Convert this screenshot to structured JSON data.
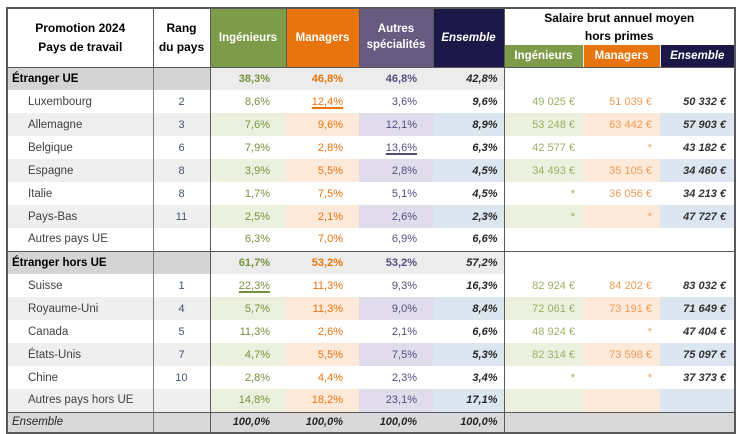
{
  "table": {
    "header": {
      "title_line1": "Promotion 2024",
      "title_line2": "Pays de travail",
      "rank_line1": "Rang",
      "rank_line2": "du pays",
      "col_ingenieurs": "Ingénieurs",
      "col_managers": "Managers",
      "col_autres_line1": "Autres",
      "col_autres_line2": "spécialités",
      "col_ensemble": "Ensemble",
      "salary_line1": "Salaire brut annuel moyen",
      "salary_line2": "hors primes",
      "sal_ingenieurs": "Ingénieurs",
      "sal_managers": "Managers",
      "sal_ensemble": "Ensemble"
    },
    "rows": [
      {
        "type": "section",
        "label": "Étranger UE",
        "rank": "",
        "pct": [
          "38,3%",
          "46,8%",
          "46,8%",
          "42,8%"
        ],
        "sal": [
          "",
          "",
          ""
        ]
      },
      {
        "type": "country",
        "tint": false,
        "label": "Luxembourg",
        "rank": "2",
        "pct": [
          "8,6%",
          "12,4%",
          "3,6%",
          "9,6%"
        ],
        "underline": [
          false,
          true,
          false,
          false
        ],
        "sal": [
          "49 025 €",
          "51 039 €",
          "50 332 €"
        ]
      },
      {
        "type": "country",
        "tint": true,
        "label": "Allemagne",
        "rank": "3",
        "pct": [
          "7,6%",
          "9,6%",
          "12,1%",
          "8,9%"
        ],
        "sal": [
          "53 248 €",
          "63 442 €",
          "57 903 €"
        ]
      },
      {
        "type": "country",
        "tint": false,
        "label": "Belgique",
        "rank": "6",
        "pct": [
          "7,9%",
          "2,8%",
          "13,6%",
          "6,3%"
        ],
        "underline": [
          false,
          false,
          true,
          false
        ],
        "sal": [
          "42 577 €",
          "*",
          "43 182 €"
        ]
      },
      {
        "type": "country",
        "tint": true,
        "label": "Espagne",
        "rank": "8",
        "pct": [
          "3,9%",
          "5,5%",
          "2,8%",
          "4,5%"
        ],
        "sal": [
          "34 493 €",
          "35 105 €",
          "34 460 €"
        ]
      },
      {
        "type": "country",
        "tint": false,
        "label": "Italie",
        "rank": "8",
        "pct": [
          "1,7%",
          "7,5%",
          "5,1%",
          "4,5%"
        ],
        "sal": [
          "*",
          "36 056 €",
          "34 213 €"
        ]
      },
      {
        "type": "country",
        "tint": true,
        "label": "Pays-Bas",
        "rank": "11",
        "pct": [
          "2,5%",
          "2,1%",
          "2,6%",
          "2,3%"
        ],
        "sal": [
          "*",
          "*",
          "47 727 €"
        ]
      },
      {
        "type": "country",
        "tint": false,
        "label": "Autres pays UE",
        "rank": "",
        "pct": [
          "6,3%",
          "7,0%",
          "6,9%",
          "6,6%"
        ],
        "sal": [
          "",
          "",
          ""
        ]
      },
      {
        "type": "section",
        "label": "Étranger hors UE",
        "rank": "",
        "pct": [
          "61,7%",
          "53,2%",
          "53,2%",
          "57,2%"
        ],
        "sal": [
          "",
          "",
          ""
        ]
      },
      {
        "type": "country",
        "tint": false,
        "label": "Suisse",
        "rank": "1",
        "pct": [
          "22,3%",
          "11,3%",
          "9,3%",
          "16,3%"
        ],
        "underline": [
          true,
          false,
          false,
          false
        ],
        "sal": [
          "82 924 €",
          "84 202 €",
          "83 032 €"
        ]
      },
      {
        "type": "country",
        "tint": true,
        "label": "Royaume-Uni",
        "rank": "4",
        "pct": [
          "5,7%",
          "11,3%",
          "9,0%",
          "8,4%"
        ],
        "sal": [
          "72 061 €",
          "73 191 €",
          "71 649 €"
        ]
      },
      {
        "type": "country",
        "tint": false,
        "label": "Canada",
        "rank": "5",
        "pct": [
          "11,3%",
          "2,6%",
          "2,1%",
          "6,6%"
        ],
        "sal": [
          "48 924 €",
          "*",
          "47 404 €"
        ]
      },
      {
        "type": "country",
        "tint": true,
        "label": "États-Unis",
        "rank": "7",
        "pct": [
          "4,7%",
          "5,5%",
          "7,5%",
          "5,3%"
        ],
        "sal": [
          "82 314 €",
          "73 598 €",
          "75 097 €"
        ]
      },
      {
        "type": "country",
        "tint": false,
        "label": "Chine",
        "rank": "10",
        "pct": [
          "2,8%",
          "4,4%",
          "2,3%",
          "3,4%"
        ],
        "sal": [
          "*",
          "*",
          "37 373 €"
        ]
      },
      {
        "type": "country",
        "tint": true,
        "label": "Autres pays hors UE",
        "rank": "",
        "pct": [
          "14,8%",
          "18,2%",
          "23,1%",
          "17,1%"
        ],
        "sal": [
          "",
          "",
          ""
        ]
      },
      {
        "type": "footer",
        "label": "Ensemble",
        "rank": "",
        "pct": [
          "100,0%",
          "100,0%",
          "100,0%",
          "100,0%"
        ],
        "sal": [
          "",
          "",
          ""
        ]
      }
    ]
  },
  "colors": {
    "header_green": "#7D9B49",
    "header_orange": "#E8740D",
    "header_purple": "#695A82",
    "header_navy": "#1B1747",
    "pct_green": "#76923C",
    "pct_orange": "#E8740D",
    "pct_purple": "#564C80",
    "dark_text": "#262626",
    "salary_green": "#9AAF66",
    "salary_orange": "#F09B55",
    "tint_green": "#EBF1DE",
    "tint_orange": "#FDE9D9",
    "tint_purple": "#E0DCEC",
    "tint_blue": "#DCE6F1",
    "row_gray": "#EFEFEF",
    "section_gray": "#D4D4D4",
    "section_pct_gray": "#ECECEC",
    "footer_gray": "#D9D9D9",
    "border_dark": "#595959"
  }
}
